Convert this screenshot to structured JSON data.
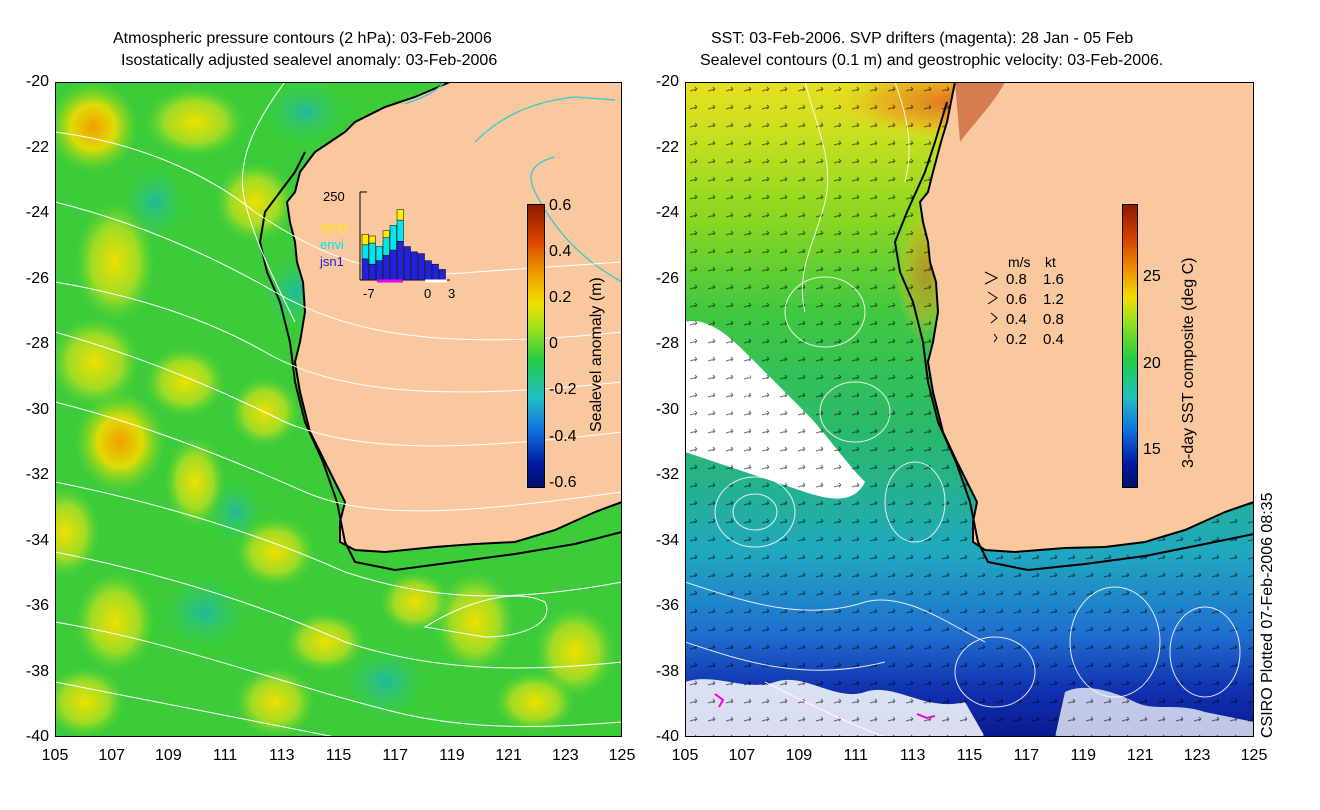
{
  "left_panel": {
    "title_line1": "Atmospheric pressure contours (2 hPa): 03-Feb-2006",
    "title_line2": "Isostatically adjusted sealevel anomaly: 03-Feb-2006",
    "colorbar": {
      "label": "Sealevel anomaly (m)",
      "ticks": [
        "0.6",
        "0.4",
        "0.2",
        "0",
        "-0.2",
        "-0.4",
        "-0.6"
      ]
    },
    "inset": {
      "ymax_label": "250",
      "legend": [
        "GFO",
        "envi",
        "jsn1"
      ],
      "legend_colors": [
        "#ffee00",
        "#00e5ee",
        "#2222dd"
      ],
      "x_ticks": [
        "-7",
        "0",
        "3"
      ],
      "bars_jsn1": [
        60,
        45,
        55,
        70,
        85,
        110,
        95,
        80,
        75,
        55,
        45,
        30
      ],
      "bars_envi": [
        40,
        60,
        40,
        50,
        70,
        60,
        0,
        0,
        0,
        0,
        0,
        0
      ],
      "bars_gfo": [
        30,
        20,
        0,
        20,
        0,
        30,
        0,
        0,
        0,
        0,
        0,
        0
      ]
    }
  },
  "right_panel": {
    "title_line1": "SST: 03-Feb-2006. SVP drifters (magenta): 28 Jan - 05 Feb",
    "title_line2": "Sealevel contours (0.1 m) and geostrophic velocity: 03-Feb-2006.",
    "colorbar": {
      "label": "3-day SST composite (deg C)",
      "ticks": [
        "25",
        "20",
        "15"
      ]
    },
    "velocity_legend": {
      "header_ms": "m/s",
      "header_kt": "kt",
      "rows": [
        {
          "ms": "0.8",
          "kt": "1.6"
        },
        {
          "ms": "0.6",
          "kt": "1.2"
        },
        {
          "ms": "0.4",
          "kt": "0.8"
        },
        {
          "ms": "0.2",
          "kt": "0.4"
        }
      ]
    }
  },
  "axes": {
    "lat_ticks": [
      "-20",
      "-22",
      "-24",
      "-26",
      "-28",
      "-30",
      "-32",
      "-34",
      "-36",
      "-38",
      "-40"
    ],
    "lon_ticks": [
      "105",
      "107",
      "109",
      "111",
      "113",
      "115",
      "117",
      "119",
      "121",
      "123",
      "125"
    ]
  },
  "credit": "CSIRO Plotted 07-Feb-2006 08:35",
  "colors": {
    "land": "#f9c89f",
    "ocean_left": "#33cc33",
    "coast": "#000000",
    "contour": "#ffffff",
    "cyan_contour": "#33cccc"
  }
}
